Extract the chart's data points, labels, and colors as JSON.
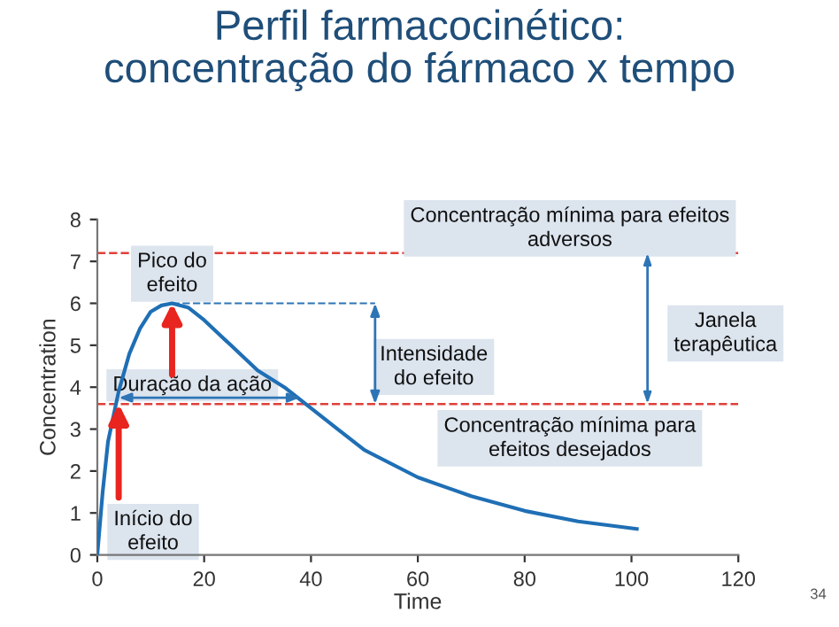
{
  "chart_data": {
    "type": "line",
    "title": "Perfil farmacocinético:\nconcentração do fármaco x tempo",
    "xlabel": "Time",
    "ylabel": "Concentration",
    "x": [
      0,
      1,
      2,
      4,
      6,
      8,
      10,
      12,
      14,
      17,
      20,
      25,
      30,
      35,
      38,
      40,
      45,
      50,
      60,
      70,
      80,
      90,
      101
    ],
    "series": [
      {
        "color": "#1f6fb5",
        "values": [
          0,
          1.5,
          2.7,
          3.9,
          4.8,
          5.4,
          5.8,
          5.95,
          6.0,
          5.9,
          5.6,
          5.0,
          4.4,
          4.0,
          3.7,
          3.5,
          3.0,
          2.5,
          1.85,
          1.4,
          1.05,
          0.8,
          0.62
        ]
      }
    ],
    "xlim": [
      0,
      120
    ],
    "ylim": [
      0,
      8
    ],
    "xticks": [
      0,
      20,
      40,
      60,
      80,
      100,
      120
    ],
    "yticks": [
      0,
      1,
      2,
      3,
      4,
      5,
      6,
      7,
      8
    ],
    "grid": false,
    "legend": false,
    "marker": "none",
    "line_style": "solid",
    "ref_lines": [
      {
        "axis": "y",
        "value": 7.2,
        "color": "#e0403a",
        "line_style": "dashed"
      },
      {
        "axis": "y",
        "value": 3.6,
        "color": "#e0403a",
        "line_style": "dashed"
      }
    ],
    "annotations": [
      {
        "text": "Concentração mínima para efeitos\nadversos",
        "x": 88,
        "y": 7.2
      },
      {
        "text": "Pico do\nefeito",
        "x": 14,
        "y": 6.0
      },
      "Intensidade\ndo efeito",
      "Janela\nterapêutica",
      {
        "text": "Duração da ação",
        "x": 21,
        "y": 3.75
      },
      {
        "text": "Concentração mínima para\nefeitos desejados",
        "x": 88,
        "y": 3.6
      },
      {
        "text": "Início do\nefeito",
        "x": 4,
        "y": 3.6
      },
      "34"
    ]
  }
}
